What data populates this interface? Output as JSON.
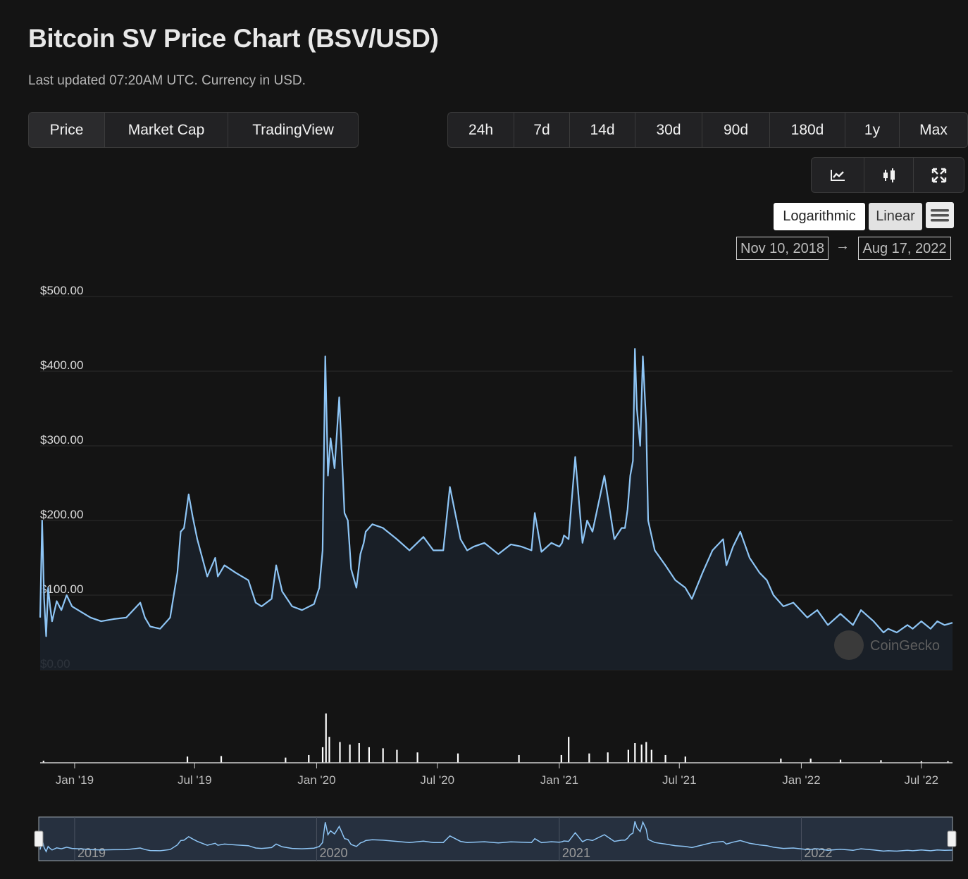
{
  "header": {
    "title": "Bitcoin SV Price Chart (BSV/USD)",
    "subtitle": "Last updated 07:20AM UTC. Currency in USD."
  },
  "metric_tabs": [
    "Price",
    "Market Cap",
    "TradingView"
  ],
  "range_tabs": [
    "24h",
    "7d",
    "14d",
    "30d",
    "90d",
    "180d",
    "1y",
    "Max"
  ],
  "view_tools": [
    "line-chart-icon",
    "candlestick-icon",
    "fullscreen-icon"
  ],
  "scale": {
    "log_label": "Logarithmic",
    "linear_label": "Linear",
    "selected": "Linear"
  },
  "date_range": {
    "from": "Nov 10, 2018",
    "arrow": "→",
    "to": "Aug 17, 2022"
  },
  "watermark": "CoinGecko",
  "colors": {
    "background": "#141414",
    "line": "#8ec5f5",
    "area": "#1a2029",
    "volume": "#ffffff",
    "grid": "#2c2c2c"
  },
  "navigator_ticks": [
    "2019",
    "2020",
    "2021",
    "2022"
  ],
  "chart_data": {
    "type": "line",
    "series": [
      {
        "x": [
          "2018-11-10",
          "2018-11-13",
          "2018-11-16",
          "2018-11-19",
          "2018-11-22",
          "2018-11-25",
          "2018-11-28",
          "2018-12-05",
          "2018-12-12",
          "2018-12-20",
          "2018-12-28",
          "2019-01-10",
          "2019-01-25",
          "2019-02-10",
          "2019-03-01",
          "2019-03-20",
          "2019-04-10",
          "2019-04-17",
          "2019-04-25",
          "2019-05-10",
          "2019-05-25",
          "2019-06-05",
          "2019-06-10",
          "2019-06-15",
          "2019-06-22",
          "2019-06-28",
          "2019-07-05",
          "2019-07-20",
          "2019-08-01",
          "2019-08-05",
          "2019-08-15",
          "2019-09-01",
          "2019-09-20",
          "2019-10-01",
          "2019-10-10",
          "2019-10-25",
          "2019-11-01",
          "2019-11-10",
          "2019-11-25",
          "2019-12-10",
          "2019-12-28",
          "2020-01-05",
          "2020-01-10",
          "2020-01-14",
          "2020-01-18",
          "2020-01-22",
          "2020-01-28",
          "2020-02-04",
          "2020-02-08",
          "2020-02-12",
          "2020-02-17",
          "2020-02-22",
          "2020-03-01",
          "2020-03-07",
          "2020-03-12",
          "2020-03-15",
          "2020-03-25",
          "2020-04-10",
          "2020-05-01",
          "2020-05-20",
          "2020-06-10",
          "2020-06-25",
          "2020-07-10",
          "2020-07-20",
          "2020-07-28",
          "2020-08-05",
          "2020-08-15",
          "2020-08-25",
          "2020-09-10",
          "2020-10-01",
          "2020-10-20",
          "2020-11-05",
          "2020-11-20",
          "2020-11-25",
          "2020-12-05",
          "2020-12-20",
          "2021-01-01",
          "2021-01-05",
          "2021-01-08",
          "2021-01-15",
          "2021-01-25",
          "2021-02-05",
          "2021-02-12",
          "2021-02-20",
          "2021-03-10",
          "2021-03-25",
          "2021-04-05",
          "2021-04-10",
          "2021-04-14",
          "2021-04-18",
          "2021-04-22",
          "2021-04-25",
          "2021-04-28",
          "2021-05-03",
          "2021-05-07",
          "2021-05-12",
          "2021-05-15",
          "2021-05-20",
          "2021-05-25",
          "2021-06-10",
          "2021-06-25",
          "2021-07-10",
          "2021-07-20",
          "2021-08-05",
          "2021-08-20",
          "2021-09-05",
          "2021-09-10",
          "2021-09-20",
          "2021-10-01",
          "2021-10-15",
          "2021-10-30",
          "2021-11-10",
          "2021-11-20",
          "2021-12-05",
          "2021-12-20",
          "2022-01-10",
          "2022-01-25",
          "2022-02-10",
          "2022-03-01",
          "2022-03-20",
          "2022-04-01",
          "2022-04-20",
          "2022-05-05",
          "2022-05-12",
          "2022-05-25",
          "2022-06-10",
          "2022-06-18",
          "2022-07-01",
          "2022-07-15",
          "2022-07-25",
          "2022-08-05",
          "2022-08-17"
        ],
        "values": [
          70,
          200,
          95,
          45,
          110,
          85,
          65,
          92,
          80,
          100,
          85,
          78,
          70,
          65,
          68,
          70,
          90,
          70,
          58,
          55,
          70,
          130,
          185,
          190,
          235,
          205,
          175,
          125,
          150,
          125,
          140,
          130,
          120,
          90,
          85,
          95,
          140,
          105,
          85,
          80,
          88,
          110,
          160,
          420,
          260,
          310,
          270,
          365,
          290,
          210,
          200,
          135,
          110,
          155,
          170,
          185,
          195,
          190,
          175,
          160,
          178,
          160,
          160,
          245,
          210,
          175,
          160,
          165,
          170,
          155,
          168,
          165,
          160,
          210,
          158,
          170,
          165,
          170,
          180,
          175,
          285,
          170,
          200,
          185,
          260,
          175,
          190,
          190,
          215,
          260,
          280,
          430,
          350,
          300,
          420,
          330,
          200,
          180,
          160,
          140,
          120,
          110,
          95,
          130,
          160,
          175,
          140,
          165,
          185,
          150,
          130,
          120,
          100,
          85,
          90,
          70,
          80,
          60,
          75,
          60,
          80,
          65,
          50,
          55,
          50,
          60,
          55,
          65,
          55,
          65,
          60,
          63
        ]
      }
    ],
    "xlabel": "",
    "ylabel": "",
    "ylim": [
      0,
      500
    ],
    "yticks": [
      "$500.00",
      "$400.00",
      "$300.00",
      "$200.00",
      "$100.00",
      "$0.00"
    ],
    "ytick_values": [
      500,
      400,
      300,
      200,
      100,
      0
    ],
    "xticks": [
      "Jan '19",
      "Jul '19",
      "Jan '20",
      "Jul '20",
      "Jan '21",
      "Jul '21",
      "Jan '22",
      "Jul '22"
    ],
    "xtick_dates": [
      "2019-01-01",
      "2019-07-01",
      "2020-01-01",
      "2020-07-01",
      "2021-01-01",
      "2021-07-01",
      "2022-01-01",
      "2022-07-01"
    ],
    "volume": {
      "x": [
        "2018-11-15",
        "2019-06-20",
        "2019-08-10",
        "2019-11-15",
        "2019-12-20",
        "2020-01-10",
        "2020-01-15",
        "2020-01-20",
        "2020-02-05",
        "2020-02-20",
        "2020-03-05",
        "2020-03-20",
        "2020-04-10",
        "2020-05-01",
        "2020-06-01",
        "2020-08-01",
        "2020-11-01",
        "2021-01-04",
        "2021-01-15",
        "2021-02-15",
        "2021-03-15",
        "2021-04-15",
        "2021-04-25",
        "2021-05-05",
        "2021-05-12",
        "2021-05-20",
        "2021-06-10",
        "2021-07-10",
        "2021-12-01",
        "2022-01-15",
        "2022-03-01",
        "2022-05-01",
        "2022-07-01",
        "2022-08-10"
      ],
      "values": [
        0.4,
        1.2,
        1.3,
        1.0,
        1.5,
        3.0,
        9.5,
        5.0,
        4.0,
        3.5,
        3.8,
        3.0,
        2.8,
        2.5,
        2.0,
        1.8,
        1.5,
        1.5,
        5.0,
        1.8,
        2.0,
        2.5,
        3.8,
        3.5,
        4.0,
        2.5,
        1.5,
        1.2,
        0.8,
        0.8,
        0.6,
        0.5,
        0.3,
        0.3
      ]
    }
  }
}
